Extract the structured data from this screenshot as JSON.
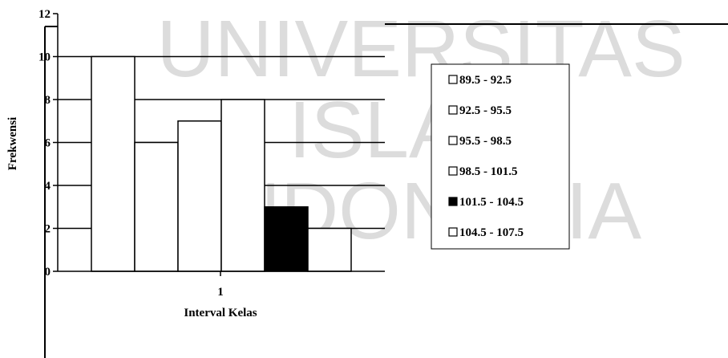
{
  "watermark": {
    "lines": [
      "UNIVERSITAS",
      "ISLAM",
      "INDONESIA"
    ]
  },
  "chart_data": {
    "type": "bar",
    "categories": [
      "1"
    ],
    "series": [
      {
        "name": "89.5 - 92.5",
        "values": [
          10
        ],
        "color": "#ffffff"
      },
      {
        "name": "92.5 - 95.5",
        "values": [
          6
        ],
        "color": "#ffffff"
      },
      {
        "name": "95.5 - 98.5",
        "values": [
          7
        ],
        "color": "#ffffff"
      },
      {
        "name": "98.5 - 101.5",
        "values": [
          8
        ],
        "color": "#ffffff"
      },
      {
        "name": "101.5 - 104.5",
        "values": [
          3
        ],
        "color": "#000000"
      },
      {
        "name": "104.5 - 107.5",
        "values": [
          2
        ],
        "color": "#ffffff"
      }
    ],
    "yticks": [
      "0",
      "2",
      "4",
      "6",
      "8",
      "10",
      "12"
    ],
    "xtick": "1",
    "xlabel": "Interval Kelas",
    "ylabel": "Frekwensi",
    "ylim": [
      0,
      12
    ],
    "grid": true,
    "legend": "right"
  }
}
